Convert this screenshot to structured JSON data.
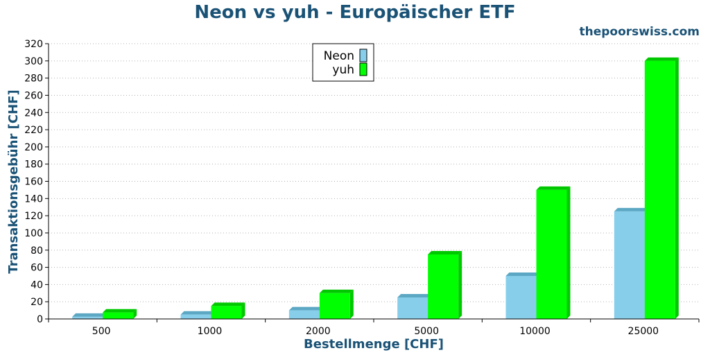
{
  "chart_data": {
    "type": "bar",
    "title": "Neon vs yuh - Europäischer ETF",
    "source": "thepoorswiss.com",
    "xlabel": "Bestellmenge [CHF]",
    "ylabel": "Transaktionsgebühr [CHF]",
    "categories": [
      "500",
      "1000",
      "2000",
      "5000",
      "10000",
      "25000"
    ],
    "series": [
      {
        "name": "Neon",
        "values": [
          2.5,
          5,
          10,
          25,
          50,
          125
        ],
        "color": "#87ceeb",
        "top_color": "#5ca8c4"
      },
      {
        "name": "yuh",
        "values": [
          7.5,
          15,
          30,
          75,
          150,
          300
        ],
        "color": "#00ff00",
        "top_color": "#00c800"
      }
    ],
    "ylim": [
      0,
      320
    ],
    "yticks": [
      0,
      20,
      40,
      60,
      80,
      100,
      120,
      140,
      160,
      180,
      200,
      220,
      240,
      260,
      280,
      300,
      320
    ],
    "grid": true,
    "legend_position": "top-center",
    "colors": {
      "title": "#1a5276",
      "axis_title": "#1a5276"
    }
  }
}
